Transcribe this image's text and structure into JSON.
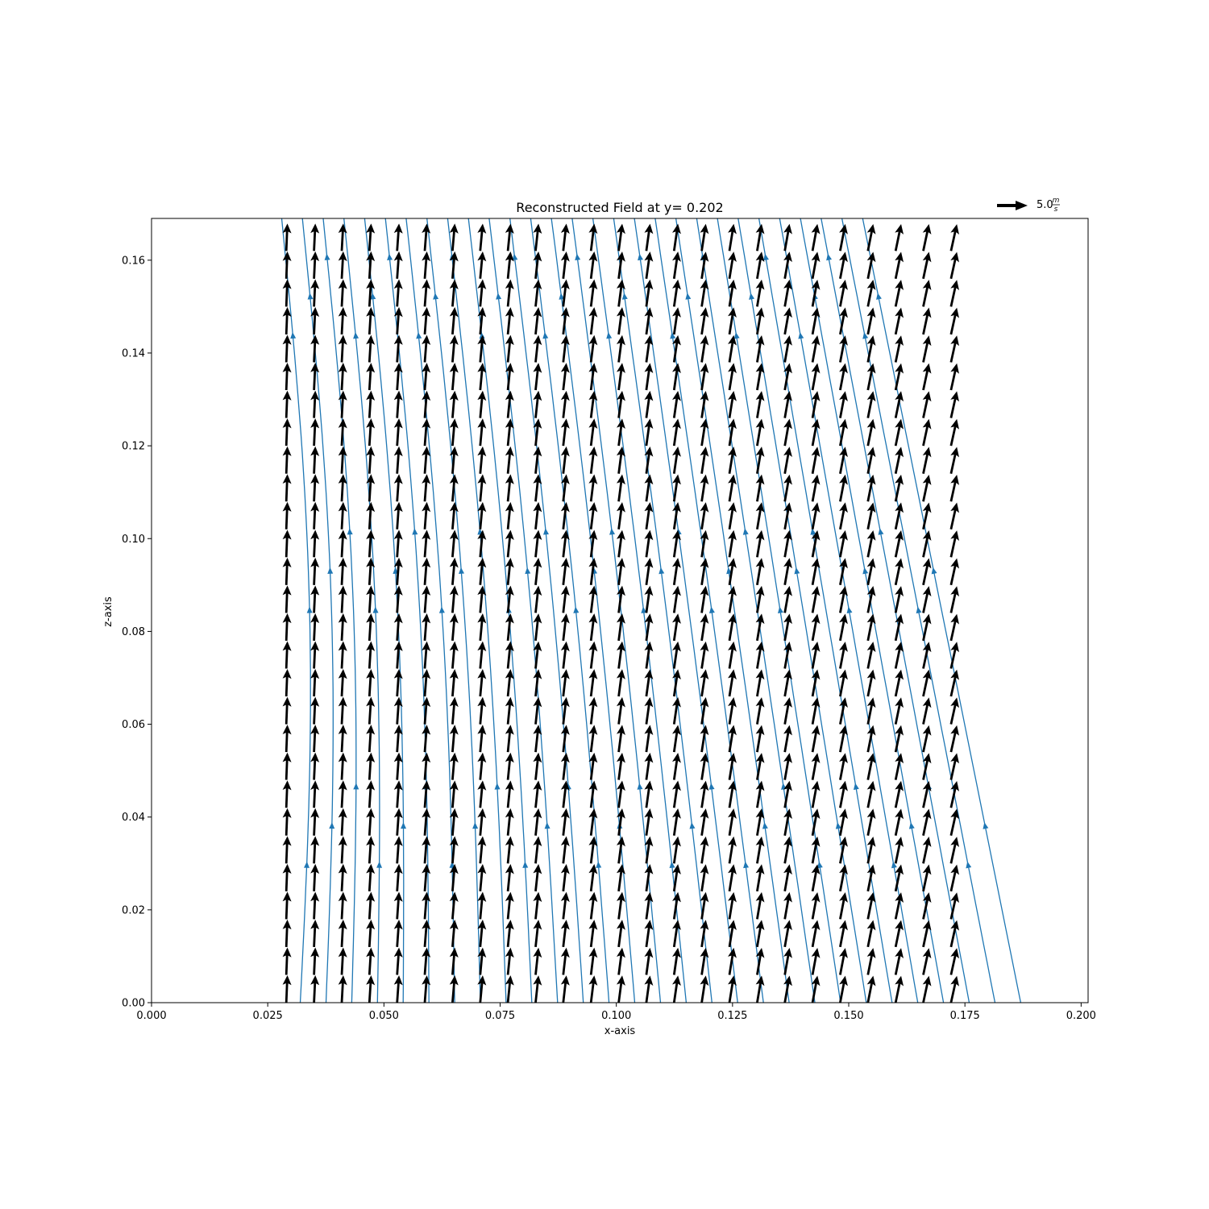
{
  "chart_data": {
    "type": "quiver+streamplot",
    "title": "Reconstructed Field at y= 0.202",
    "xlabel": "x-axis",
    "ylabel": "z-axis",
    "xlim": [
      0.0,
      0.2015
    ],
    "ylim": [
      0.0,
      0.169
    ],
    "xticks": [
      "0.000",
      "0.025",
      "0.050",
      "0.075",
      "0.100",
      "0.125",
      "0.150",
      "0.175",
      "0.200"
    ],
    "yticks": [
      "0.00",
      "0.02",
      "0.04",
      "0.06",
      "0.08",
      "0.10",
      "0.12",
      "0.14",
      "0.16"
    ],
    "quiver_key": {
      "value_label": "5.0",
      "unit_numerator": "m",
      "unit_denominator": "s"
    },
    "grid": false,
    "quiver": {
      "x_start": 0.029,
      "x_end": 0.172,
      "nx": 25,
      "z_start": 0.0,
      "z_end": 0.162,
      "nz": 28,
      "color": "#000000",
      "note_u_left": 0.0,
      "u_left": -0.04,
      "u_right": -0.22,
      "w": 1.0
    },
    "streamlines": {
      "color": "#1f77b4",
      "x_positions": [
        0.03,
        0.035,
        0.04,
        0.045,
        0.05,
        0.055,
        0.06,
        0.065,
        0.07,
        0.075,
        0.08,
        0.085,
        0.09,
        0.095,
        0.1,
        0.105,
        0.11,
        0.115,
        0.12,
        0.125,
        0.13,
        0.135,
        0.14,
        0.145,
        0.15,
        0.155,
        0.16,
        0.165,
        0.17
      ]
    }
  }
}
